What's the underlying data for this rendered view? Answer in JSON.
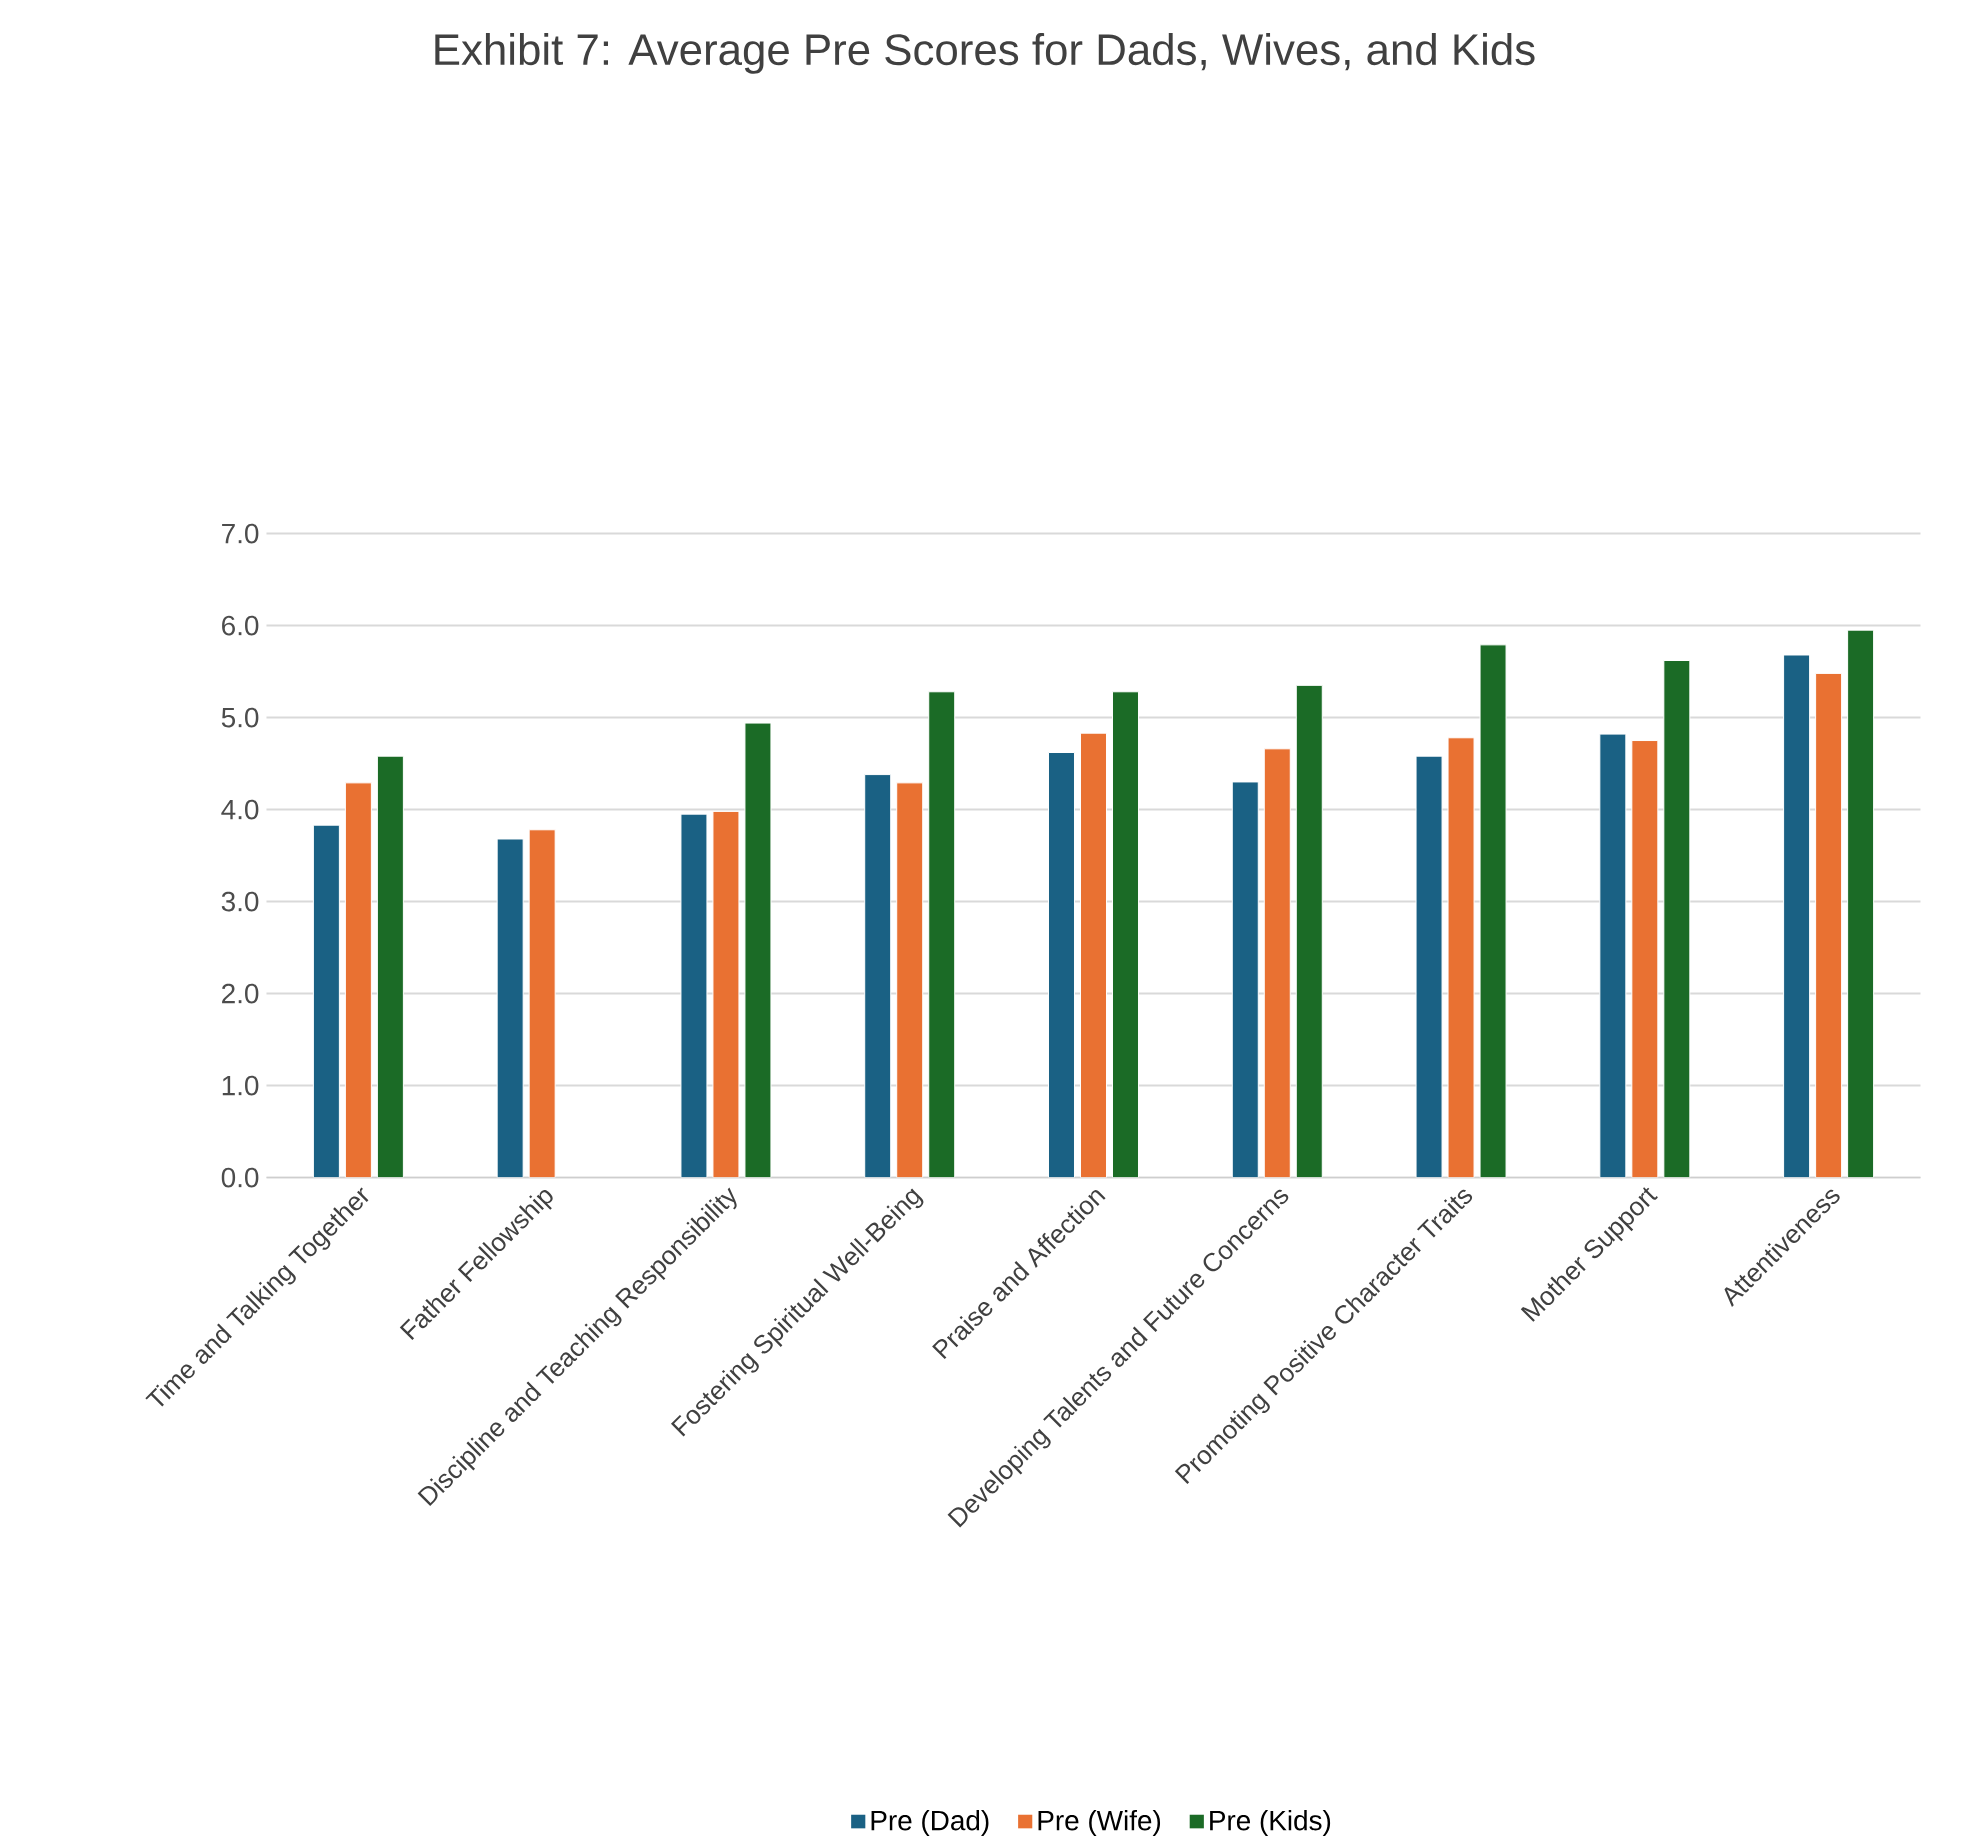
{
  "chart_data": {
    "type": "bar",
    "title": "Exhibit 7: Average Pre Scores for Dads, Wives, and Kids",
    "categories": [
      "Time and Talking Together",
      "Father Fellowship",
      "Discipline and Teaching Responsibility",
      "Fostering Spiritual Well-Being",
      "Praise and Affection",
      "Developing Talents and Future Concerns",
      "Promoting Positive Character Traits",
      "Mother Support",
      "Attentiveness"
    ],
    "series": [
      {
        "name": "Pre (Dad)",
        "color": "#1a6184",
        "values": [
          3.83,
          3.68,
          3.95,
          4.38,
          4.62,
          4.3,
          4.58,
          4.82,
          5.68
        ]
      },
      {
        "name": "Pre (Wife)",
        "color": "#e97132",
        "values": [
          4.29,
          3.78,
          3.98,
          4.29,
          4.83,
          4.66,
          4.78,
          4.75,
          5.48
        ]
      },
      {
        "name": "Pre (Kids)",
        "color": "#1b6b26",
        "values": [
          4.58,
          null,
          4.94,
          5.28,
          5.28,
          5.35,
          5.79,
          5.62,
          5.95
        ]
      }
    ],
    "ylim": [
      0,
      7
    ],
    "yticks": [
      {
        "value": 0,
        "label": "0.0"
      },
      {
        "value": 1,
        "label": "1.0"
      },
      {
        "value": 2,
        "label": "2.0"
      },
      {
        "value": 3,
        "label": "3.0"
      },
      {
        "value": 4,
        "label": "4.0"
      },
      {
        "value": 5,
        "label": "5.0"
      },
      {
        "value": 6,
        "label": "6.0"
      },
      {
        "value": 7,
        "label": "7.0"
      }
    ],
    "grid": "y",
    "legend": "bottom"
  }
}
